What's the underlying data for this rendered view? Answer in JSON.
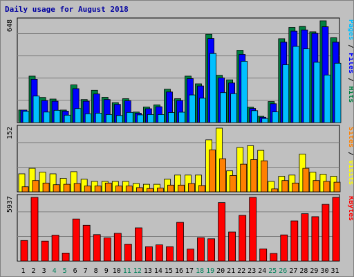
{
  "chart_data": {
    "type": "bar",
    "title": "Daily usage for August 2018",
    "categories": [
      "1",
      "2",
      "3",
      "4",
      "5",
      "6",
      "7",
      "8",
      "9",
      "10",
      "11",
      "12",
      "13",
      "14",
      "15",
      "16",
      "17",
      "18",
      "19",
      "20",
      "21",
      "22",
      "23",
      "24",
      "25",
      "26",
      "27",
      "28",
      "29",
      "30",
      "31"
    ],
    "weekend_days": [
      "4",
      "5",
      "11",
      "12",
      "18",
      "19",
      "25",
      "26"
    ],
    "panels": [
      {
        "max_label": "648",
        "ymax": 648,
        "legend": [
          "Pages",
          "/",
          "Files",
          "/",
          "Hits"
        ],
        "series": [
          {
            "name": "Hits",
            "color": "#008040",
            "values": [
              80,
              296,
              160,
              150,
              80,
              240,
              147,
              206,
              161,
              127,
              152,
              67,
              99,
              113,
              212,
              152,
              296,
              247,
              563,
              301,
              272,
              460,
              98,
              40,
              134,
              534,
              606,
              612,
              578,
              648,
              540
            ]
          },
          {
            "name": "Files",
            "color": "#0000ff",
            "values": [
              80,
              276,
              140,
              136,
              73,
              216,
              136,
              182,
              147,
              116,
              139,
              60,
              88,
              101,
              195,
              140,
              280,
              233,
              535,
              284,
              252,
              434,
              90,
              34,
              120,
              512,
              582,
              590,
              568,
              610,
              512
            ]
          },
          {
            "name": "Pages",
            "color": "#00c0ff",
            "values": [
              72,
              169,
              67,
              78,
              47,
              89,
              56,
              60,
              51,
              45,
              65,
              49,
              51,
              51,
              64,
              66,
              176,
              155,
              440,
              191,
              184,
              390,
              76,
              26,
              68,
              368,
              485,
              469,
              384,
              303,
              378
            ]
          }
        ]
      },
      {
        "max_label": "152",
        "ymax": 152,
        "legend": [
          "Sites",
          "/",
          "Visits"
        ],
        "series": [
          {
            "name": "Visits",
            "color": "#ffff00",
            "values": [
              43,
              56,
              47,
              43,
              32,
              48,
              30,
              25,
              25,
              25,
              25,
              20,
              18,
              18,
              30,
              40,
              40,
              40,
              124,
              152,
              50,
              106,
              110,
              99,
              25,
              37,
              40,
              90,
              47,
              42,
              37
            ]
          },
          {
            "name": "Sites",
            "color": "#ff8000",
            "values": [
              12,
              27,
              21,
              17,
              18,
              20,
              14,
              14,
              21,
              14,
              14,
              10,
              8,
              9,
              16,
              16,
              20,
              15,
              100,
              79,
              39,
              66,
              77,
              74,
              7,
              27,
              21,
              56,
              27,
              25,
              23
            ]
          }
        ]
      },
      {
        "max_label": "5937",
        "ymax": 5937,
        "legend": [
          "KBytes"
        ],
        "series": [
          {
            "name": "KBytes",
            "color": "#ff0000",
            "values": [
              1916,
              5937,
              1861,
              2414,
              749,
              3925,
              3338,
              2466,
              2162,
              2589,
              1575,
              3098,
              1340,
              1509,
              1340,
              3609,
              1119,
              2182,
              2080,
              5446,
              2712,
              4258,
              5937,
              1139,
              719,
              2440,
              3742,
              4416,
              4135,
              5282,
              5937
            ]
          }
        ]
      }
    ]
  }
}
